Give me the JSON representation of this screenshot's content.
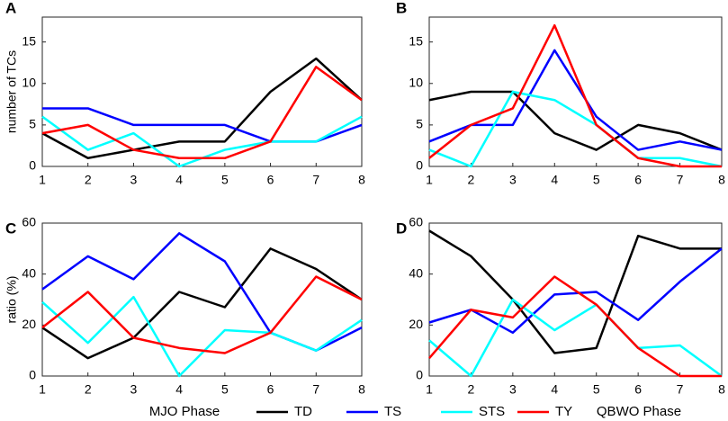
{
  "chart_data": [
    {
      "type": "line",
      "title": "A",
      "ylabel": "number of TCs",
      "x": [
        1,
        2,
        3,
        4,
        5,
        6,
        7,
        8
      ],
      "xlim": [
        1,
        8
      ],
      "xticks": [
        1,
        2,
        3,
        4,
        5,
        6,
        7,
        8
      ],
      "ylim": [
        0,
        18
      ],
      "yticks": [
        0,
        5,
        10,
        15
      ],
      "series": [
        {
          "name": "TD",
          "color": "#000000",
          "values": [
            4,
            1,
            2,
            3,
            3,
            9,
            13,
            8
          ]
        },
        {
          "name": "TS",
          "color": "#0000ff",
          "values": [
            7,
            7,
            5,
            5,
            5,
            3,
            3,
            5
          ]
        },
        {
          "name": "STS",
          "color": "#00ffff",
          "values": [
            6,
            2,
            4,
            0,
            2,
            3,
            3,
            6
          ]
        },
        {
          "name": "TY",
          "color": "#ff0000",
          "values": [
            4,
            5,
            2,
            1,
            1,
            3,
            12,
            8
          ]
        }
      ]
    },
    {
      "type": "line",
      "title": "B",
      "x": [
        1,
        2,
        3,
        4,
        5,
        6,
        7,
        8
      ],
      "xlim": [
        1,
        8
      ],
      "xticks": [
        1,
        2,
        3,
        4,
        5,
        6,
        7,
        8
      ],
      "ylim": [
        0,
        18
      ],
      "yticks": [
        0,
        5,
        10,
        15
      ],
      "series": [
        {
          "color": "#000000",
          "values": [
            8,
            9,
            9,
            4,
            2,
            5,
            4,
            2
          ]
        },
        {
          "color": "#0000ff",
          "values": [
            3,
            5,
            5,
            14,
            6,
            2,
            3,
            2
          ]
        },
        {
          "color": "#00ffff",
          "values": [
            2,
            0,
            9,
            8,
            5,
            1,
            1,
            0
          ]
        },
        {
          "color": "#ff0000",
          "values": [
            1,
            5,
            7,
            17,
            5,
            1,
            0,
            0
          ]
        }
      ]
    },
    {
      "type": "line",
      "title": "C",
      "ylabel": "ratio (%)",
      "xlabel": "MJO Phase",
      "x": [
        1,
        2,
        3,
        4,
        5,
        6,
        7,
        8
      ],
      "xlim": [
        1,
        8
      ],
      "xticks": [
        1,
        2,
        3,
        4,
        5,
        6,
        7,
        8
      ],
      "ylim": [
        0,
        60
      ],
      "yticks": [
        0,
        20,
        40,
        60
      ],
      "series": [
        {
          "color": "#000000",
          "values": [
            19,
            7,
            15,
            33,
            27,
            50,
            42,
            30
          ]
        },
        {
          "color": "#0000ff",
          "values": [
            34,
            47,
            38,
            56,
            45,
            17,
            10,
            19
          ]
        },
        {
          "color": "#00ffff",
          "values": [
            29,
            13,
            31,
            0,
            18,
            17,
            10,
            22
          ]
        },
        {
          "color": "#ff0000",
          "values": [
            19,
            33,
            15,
            11,
            9,
            17,
            39,
            30
          ]
        }
      ]
    },
    {
      "type": "line",
      "title": "D",
      "xlabel": "QBWO Phase",
      "x": [
        1,
        2,
        3,
        4,
        5,
        6,
        7,
        8
      ],
      "xlim": [
        1,
        8
      ],
      "xticks": [
        1,
        2,
        3,
        4,
        5,
        6,
        7,
        8
      ],
      "ylim": [
        0,
        60
      ],
      "yticks": [
        0,
        20,
        40,
        60
      ],
      "series": [
        {
          "color": "#000000",
          "values": [
            57,
            47,
            30,
            9,
            11,
            55,
            50,
            50
          ]
        },
        {
          "color": "#0000ff",
          "values": [
            21,
            26,
            17,
            32,
            33,
            22,
            37,
            50
          ]
        },
        {
          "color": "#00ffff",
          "values": [
            14,
            0,
            30,
            18,
            28,
            11,
            12,
            0
          ]
        },
        {
          "color": "#ff0000",
          "values": [
            7,
            26,
            23,
            39,
            28,
            11,
            0,
            0
          ]
        }
      ]
    }
  ]
}
